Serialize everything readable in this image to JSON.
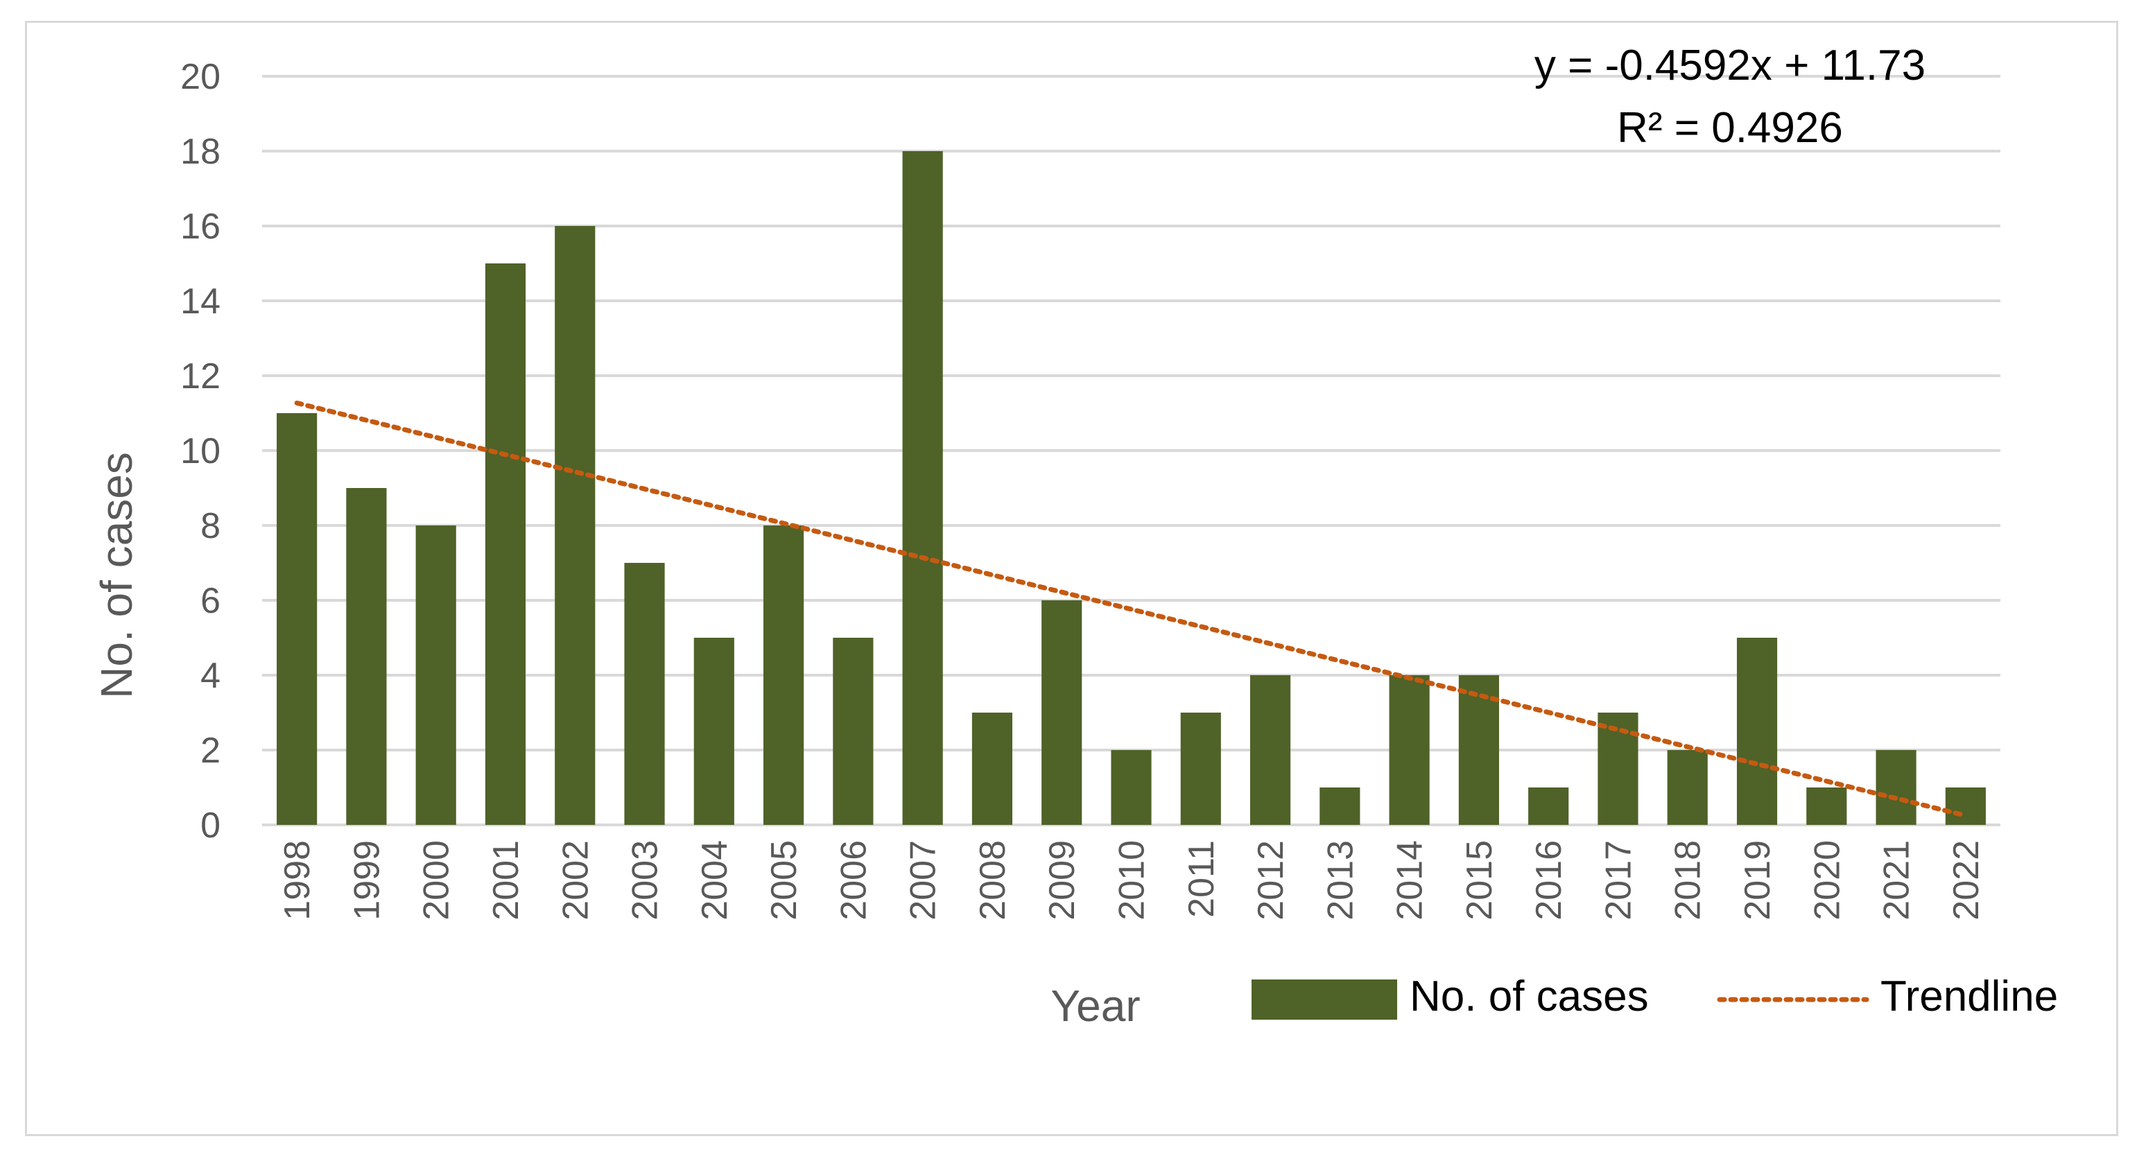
{
  "chart_data": {
    "type": "bar",
    "categories": [
      "1998",
      "1999",
      "2000",
      "2001",
      "2002",
      "2003",
      "2004",
      "2005",
      "2006",
      "2007",
      "2008",
      "2009",
      "2010",
      "2011",
      "2012",
      "2013",
      "2014",
      "2015",
      "2016",
      "2017",
      "2018",
      "2019",
      "2020",
      "2021",
      "2022"
    ],
    "series": [
      {
        "name": "No. of cases",
        "values": [
          11,
          9,
          8,
          15,
          16,
          7,
          5,
          8,
          5,
          18,
          3,
          6,
          2,
          3,
          4,
          1,
          4,
          4,
          1,
          3,
          2,
          5,
          1,
          2,
          1
        ],
        "color": "#4f6228"
      }
    ],
    "trendline": {
      "name": "Trendline",
      "slope": -0.4592,
      "intercept": 11.73,
      "color": "#c55a11",
      "equation": "y = -0.4592x + 11.73",
      "r_squared": "R² = 0.4926"
    },
    "yticks": [
      "0",
      "2",
      "4",
      "6",
      "8",
      "10",
      "12",
      "14",
      "16",
      "18",
      "20"
    ],
    "ylim": [
      0,
      20
    ],
    "xlabel": "Year",
    "ylabel": "No. of cases",
    "grid": true,
    "legend": {
      "position": "bottom-right",
      "entries": [
        "No. of cases",
        "Trendline"
      ]
    }
  }
}
